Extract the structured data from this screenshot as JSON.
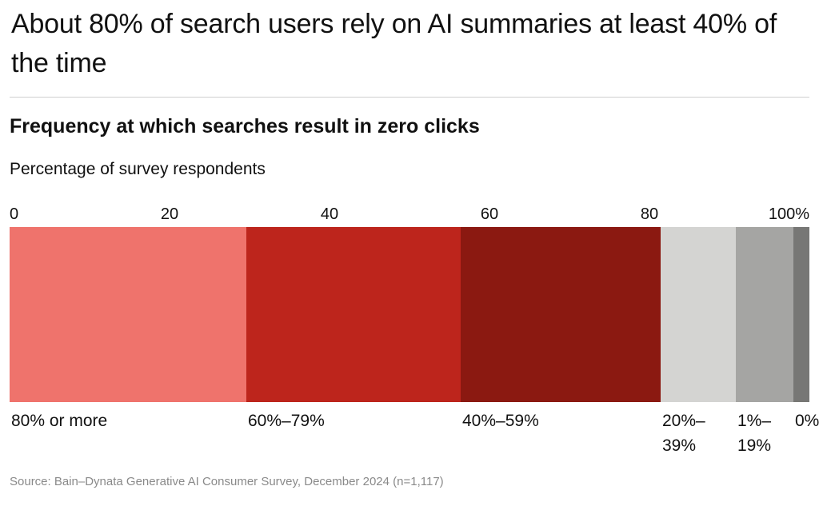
{
  "headline": "About 80% of search users rely on AI summaries at least 40% of the time",
  "source": "Source: Bain–Dynata Generative AI Consumer Survey, December 2024 (n=1,117)",
  "chart_data": {
    "type": "bar",
    "orientation": "horizontal-stacked-100",
    "title": "Frequency at which searches result in zero clicks",
    "unit_label": "Percentage of survey respondents",
    "xlim": [
      0,
      100
    ],
    "ticks": [
      0,
      20,
      40,
      60,
      80,
      100
    ],
    "tick_labels": [
      "0",
      "20",
      "40",
      "60",
      "80",
      "100%"
    ],
    "grid": false,
    "legend": "none",
    "segments": [
      {
        "label": "80% or more",
        "value": 29.6,
        "color": "#ef736c"
      },
      {
        "label": "60%–79%",
        "value": 26.8,
        "color": "#bd251c"
      },
      {
        "label": "40%–59%",
        "value": 25.0,
        "color": "#8b1911"
      },
      {
        "label": "20%–39%",
        "value": 9.4,
        "color": "#d4d4d2"
      },
      {
        "label": "1%–19%",
        "value": 7.2,
        "color": "#a5a5a3"
      },
      {
        "label": "0%",
        "value": 2.0,
        "color": "#777775"
      }
    ]
  }
}
